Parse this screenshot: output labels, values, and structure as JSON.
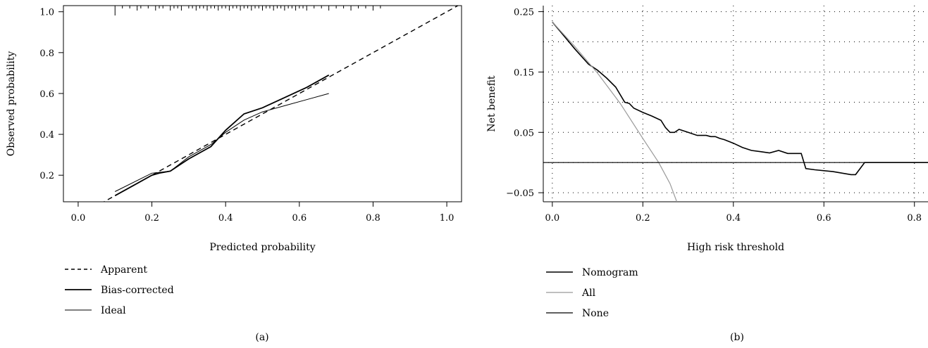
{
  "chart_data": [
    {
      "type": "line",
      "panel_label": "(a)",
      "xlabel": "Predicted probability",
      "ylabel": "Observed probability",
      "xlim": [
        -0.04,
        1.04
      ],
      "ylim": [
        0.07,
        1.03
      ],
      "x_ticks": [
        0.0,
        0.2,
        0.4,
        0.6,
        0.8,
        1.0
      ],
      "x_tick_labels": [
        "0.0",
        "0.2",
        "0.4",
        "0.6",
        "0.8",
        "1.0"
      ],
      "y_ticks": [
        0.2,
        0.4,
        0.6,
        0.8,
        1.0
      ],
      "y_tick_labels": [
        "0.2",
        "0.4",
        "0.6",
        "0.8",
        "1.0"
      ],
      "grid": false,
      "legend_position": "below",
      "series": [
        {
          "name": "Apparent",
          "style": "dashed",
          "x": [
            -0.04,
            1.04
          ],
          "y": [
            -0.04,
            1.04
          ]
        },
        {
          "name": "Bias-corrected",
          "style": "solid-thick",
          "x": [
            0.1,
            0.15,
            0.2,
            0.22,
            0.25,
            0.3,
            0.36,
            0.4,
            0.45,
            0.5,
            0.56,
            0.62,
            0.68
          ],
          "y": [
            0.1,
            0.15,
            0.2,
            0.21,
            0.22,
            0.28,
            0.34,
            0.42,
            0.5,
            0.53,
            0.58,
            0.63,
            0.69
          ]
        },
        {
          "name": "Ideal",
          "style": "solid-thin",
          "x": [
            0.1,
            0.2,
            0.25,
            0.3,
            0.36,
            0.4,
            0.45,
            0.5,
            0.56,
            0.62,
            0.68
          ],
          "y": [
            0.12,
            0.21,
            0.22,
            0.29,
            0.35,
            0.41,
            0.47,
            0.51,
            0.54,
            0.57,
            0.6
          ]
        }
      ],
      "rug_x": [
        0.1,
        0.12,
        0.14,
        0.16,
        0.17,
        0.19,
        0.21,
        0.22,
        0.23,
        0.25,
        0.26,
        0.27,
        0.28,
        0.3,
        0.31,
        0.32,
        0.33,
        0.34,
        0.35,
        0.36,
        0.37,
        0.38,
        0.39,
        0.4,
        0.41,
        0.42,
        0.43,
        0.44,
        0.45,
        0.46,
        0.47,
        0.48,
        0.49,
        0.5,
        0.51,
        0.52,
        0.53,
        0.54,
        0.55,
        0.56,
        0.57,
        0.58,
        0.59,
        0.6,
        0.61,
        0.62,
        0.64,
        0.66,
        0.68,
        0.7,
        0.72,
        0.74,
        0.76,
        0.78,
        0.8,
        0.82
      ]
    },
    {
      "type": "line",
      "panel_label": "(b)",
      "xlabel": "High risk threshold",
      "ylabel": "Net benefit",
      "xlim": [
        -0.02,
        0.83
      ],
      "ylim": [
        -0.065,
        0.26
      ],
      "x_ticks": [
        0.0,
        0.2,
        0.4,
        0.6,
        0.8
      ],
      "x_tick_labels": [
        "0.0",
        "0.2",
        "0.4",
        "0.6",
        "0.8"
      ],
      "y_ticks": [
        -0.05,
        0.05,
        0.15,
        0.25
      ],
      "y_tick_labels": [
        "−0.05",
        "0.05",
        "0.15",
        "0.25"
      ],
      "grid": true,
      "grid_x": [
        0.0,
        0.2,
        0.4,
        0.6,
        0.8
      ],
      "grid_y": [
        -0.05,
        0.0,
        0.05,
        0.1,
        0.15,
        0.2,
        0.25
      ],
      "legend_position": "below",
      "series": [
        {
          "name": "Nomogram",
          "color": "#000000",
          "x": [
            0.0,
            0.02,
            0.05,
            0.08,
            0.1,
            0.12,
            0.14,
            0.16,
            0.17,
            0.18,
            0.2,
            0.22,
            0.24,
            0.25,
            0.26,
            0.27,
            0.28,
            0.3,
            0.32,
            0.34,
            0.35,
            0.36,
            0.37,
            0.38,
            0.4,
            0.42,
            0.44,
            0.46,
            0.48,
            0.5,
            0.52,
            0.55,
            0.56,
            0.58,
            0.62,
            0.66,
            0.67,
            0.69,
            0.83
          ],
          "y": [
            0.233,
            0.215,
            0.188,
            0.163,
            0.153,
            0.14,
            0.125,
            0.1,
            0.098,
            0.09,
            0.083,
            0.077,
            0.07,
            0.058,
            0.05,
            0.05,
            0.055,
            0.05,
            0.045,
            0.045,
            0.043,
            0.043,
            0.04,
            0.038,
            0.032,
            0.025,
            0.02,
            0.018,
            0.016,
            0.02,
            0.015,
            0.015,
            -0.01,
            -0.012,
            -0.015,
            -0.02,
            -0.02,
            0.0,
            0.0
          ]
        },
        {
          "name": "All",
          "color": "#999999",
          "x": [
            0.0,
            0.05,
            0.1,
            0.15,
            0.2,
            0.235,
            0.26,
            0.275
          ],
          "y": [
            0.233,
            0.192,
            0.148,
            0.098,
            0.04,
            0.0,
            -0.035,
            -0.065
          ]
        },
        {
          "name": "None",
          "color": "#000000",
          "x": [
            -0.02,
            0.83
          ],
          "y": [
            0.0,
            0.0
          ]
        }
      ]
    }
  ]
}
